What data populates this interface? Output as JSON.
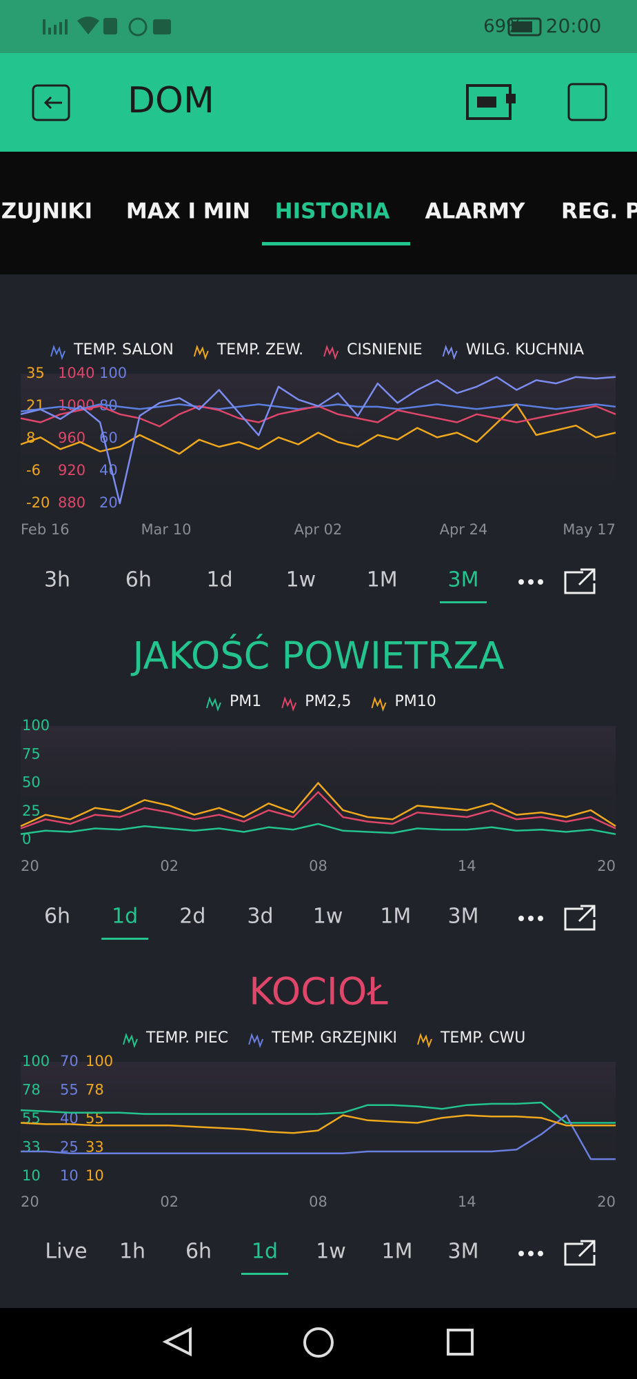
{
  "status_bar": {
    "battery": "69%",
    "time": "20:00"
  },
  "app_bar": {
    "title": "DOM"
  },
  "tabs": {
    "items": [
      "CZUJNIKI",
      "MAX I MIN",
      "HISTORIA",
      "ALARMY",
      "REG. PO"
    ],
    "selected_index": 2
  },
  "chart_data": [
    {
      "type": "line",
      "x": [
        0,
        3,
        6,
        9,
        12,
        15,
        18,
        21,
        24,
        27,
        30,
        33,
        36,
        39,
        42,
        45,
        48,
        51,
        54,
        57,
        60,
        63,
        66,
        69,
        72,
        75,
        78,
        81,
        84,
        87,
        90
      ],
      "xlim": [
        0,
        90
      ],
      "xticks": [
        {
          "value": 0,
          "label": "Feb 16"
        },
        {
          "value": 22,
          "label": "Mar 10"
        },
        {
          "value": 45,
          "label": "Apr 02"
        },
        {
          "value": 67,
          "label": "Apr 24"
        },
        {
          "value": 90,
          "label": "May 17"
        }
      ],
      "ylim": [
        -20,
        35
      ],
      "ycolor": "#f0a81c",
      "yticks": [
        -20,
        {
          "value": -6.25,
          "label": "-6"
        },
        {
          "value": 7.5,
          "label": "8"
        },
        {
          "value": 21.25,
          "label": "21"
        },
        35
      ],
      "y2lim": [
        880,
        1040
      ],
      "y2color": "#e0466a",
      "y2ticks": [
        880,
        920,
        960,
        1000,
        1040
      ],
      "y3lim": [
        20,
        100
      ],
      "y3color": "#6b7fe0",
      "y3ticks": [
        20,
        40,
        60,
        80,
        100
      ],
      "series": [
        {
          "name": "TEMP. SALON",
          "color": "#5b7fe0",
          "axis": "y",
          "values": [
            19,
            20,
            21,
            20,
            22,
            21,
            20,
            21,
            22,
            21,
            20,
            21,
            22,
            21,
            20,
            21,
            22,
            21,
            21,
            20,
            21,
            22,
            21,
            20,
            21,
            22,
            21,
            20,
            21,
            22,
            21
          ]
        },
        {
          "name": "TEMP. ZEW.",
          "color": "#f0a81c",
          "axis": "y",
          "values": [
            5,
            8,
            3,
            6,
            2,
            4,
            9,
            5,
            1,
            7,
            4,
            6,
            3,
            8,
            5,
            10,
            6,
            4,
            9,
            7,
            12,
            8,
            10,
            6,
            14,
            22,
            9,
            11,
            13,
            8,
            10
          ]
        },
        {
          "name": "CISNIENIE",
          "color": "#e0466a",
          "axis": "y2",
          "values": [
            985,
            980,
            990,
            995,
            1000,
            990,
            985,
            975,
            990,
            1000,
            995,
            985,
            980,
            990,
            995,
            1000,
            990,
            985,
            980,
            995,
            990,
            985,
            980,
            990,
            985,
            980,
            985,
            990,
            995,
            1000,
            990
          ]
        },
        {
          "name": "WILG. KUCHNIA",
          "color": "#7b8cf0",
          "axis": "y3",
          "values": [
            75,
            78,
            72,
            80,
            70,
            20,
            74,
            82,
            85,
            78,
            90,
            76,
            62,
            92,
            84,
            80,
            88,
            74,
            94,
            82,
            90,
            96,
            88,
            92,
            98,
            90,
            96,
            94,
            98,
            97,
            98
          ]
        }
      ],
      "ranges": [
        "3h",
        "6h",
        "1d",
        "1w",
        "1M",
        "3M"
      ],
      "selected_range_index": 5
    },
    {
      "type": "line",
      "title": "JAKOŚĆ POWIETRZA",
      "title_color": "#23c48e",
      "x": [
        0,
        1,
        2,
        3,
        4,
        5,
        6,
        7,
        8,
        9,
        10,
        11,
        12,
        13,
        14,
        15,
        16,
        17,
        18,
        19,
        20,
        21,
        22,
        23,
        24
      ],
      "xlim": [
        0,
        24
      ],
      "xticks": [
        {
          "value": 0,
          "label": "20"
        },
        {
          "value": 6,
          "label": "02"
        },
        {
          "value": 12,
          "label": "08"
        },
        {
          "value": 18,
          "label": "14"
        },
        {
          "value": 24,
          "label": "20"
        }
      ],
      "ylim": [
        0,
        100
      ],
      "ycolor": "#23c48e",
      "yticks": [
        0,
        25,
        50,
        75,
        100
      ],
      "series": [
        {
          "name": "PM1",
          "color": "#23c48e",
          "axis": "y",
          "values": [
            5,
            8,
            7,
            10,
            9,
            12,
            10,
            8,
            10,
            7,
            11,
            9,
            14,
            8,
            7,
            6,
            10,
            9,
            9,
            11,
            8,
            9,
            7,
            9,
            5
          ]
        },
        {
          "name": "PM2,5",
          "color": "#e0466a",
          "axis": "y",
          "values": [
            10,
            18,
            14,
            22,
            20,
            28,
            24,
            18,
            22,
            16,
            26,
            20,
            42,
            20,
            16,
            14,
            24,
            22,
            20,
            26,
            18,
            20,
            16,
            20,
            10
          ]
        },
        {
          "name": "PM10",
          "color": "#f0a81c",
          "axis": "y",
          "values": [
            12,
            22,
            18,
            28,
            25,
            35,
            30,
            22,
            28,
            20,
            32,
            24,
            50,
            26,
            20,
            18,
            30,
            28,
            26,
            32,
            22,
            24,
            20,
            26,
            12
          ]
        }
      ],
      "ranges": [
        "6h",
        "1d",
        "2d",
        "3d",
        "1w",
        "1M",
        "3M"
      ],
      "selected_range_index": 1
    },
    {
      "type": "line",
      "title": "KOCIOŁ",
      "title_color": "#e0466a",
      "x": [
        0,
        1,
        2,
        3,
        4,
        5,
        6,
        7,
        8,
        9,
        10,
        11,
        12,
        13,
        14,
        15,
        16,
        17,
        18,
        19,
        20,
        21,
        22,
        23,
        24
      ],
      "xlim": [
        0,
        24
      ],
      "xticks": [
        {
          "value": 0,
          "label": "20"
        },
        {
          "value": 6,
          "label": "02"
        },
        {
          "value": 12,
          "label": "08"
        },
        {
          "value": 18,
          "label": "14"
        },
        {
          "value": 24,
          "label": "20"
        }
      ],
      "ylim": [
        10,
        100
      ],
      "ycolor": "#23c48e",
      "yticks": [
        10,
        {
          "value": 32.5,
          "label": "33"
        },
        55,
        {
          "value": 77.5,
          "label": "78"
        },
        100
      ],
      "y2lim": [
        10,
        70
      ],
      "y2color": "#6b7fe0",
      "y2ticks": [
        10,
        25,
        40,
        55,
        70
      ],
      "y3lim": [
        10,
        100
      ],
      "y3color": "#f0a81c",
      "y3ticks": [
        10,
        {
          "value": 32.5,
          "label": "33"
        },
        55,
        {
          "value": 77.5,
          "label": "78"
        },
        100
      ],
      "series": [
        {
          "name": "TEMP. PIEC",
          "color": "#23c48e",
          "axis": "y",
          "values": [
            62,
            61,
            60,
            60,
            60,
            59,
            59,
            59,
            59,
            59,
            59,
            59,
            59,
            60,
            66,
            66,
            65,
            63,
            66,
            67,
            67,
            68,
            52,
            52,
            52
          ]
        },
        {
          "name": "TEMP. GRZEJNIKI",
          "color": "#6b7fe0",
          "axis": "y2",
          "values": [
            23,
            23,
            22,
            22,
            22,
            22,
            22,
            22,
            22,
            22,
            22,
            22,
            22,
            22,
            23,
            23,
            23,
            23,
            23,
            23,
            24,
            32,
            42,
            19,
            19
          ]
        },
        {
          "name": "TEMP. CWU",
          "color": "#f0a81c",
          "axis": "y3",
          "values": [
            52,
            51,
            51,
            50,
            50,
            50,
            50,
            49,
            48,
            47,
            45,
            44,
            46,
            58,
            54,
            53,
            52,
            56,
            58,
            57,
            57,
            56,
            50,
            50,
            50
          ]
        }
      ],
      "ranges": [
        "Live",
        "1h",
        "6h",
        "1d",
        "1w",
        "1M",
        "3M"
      ],
      "selected_range_index": 3
    }
  ]
}
